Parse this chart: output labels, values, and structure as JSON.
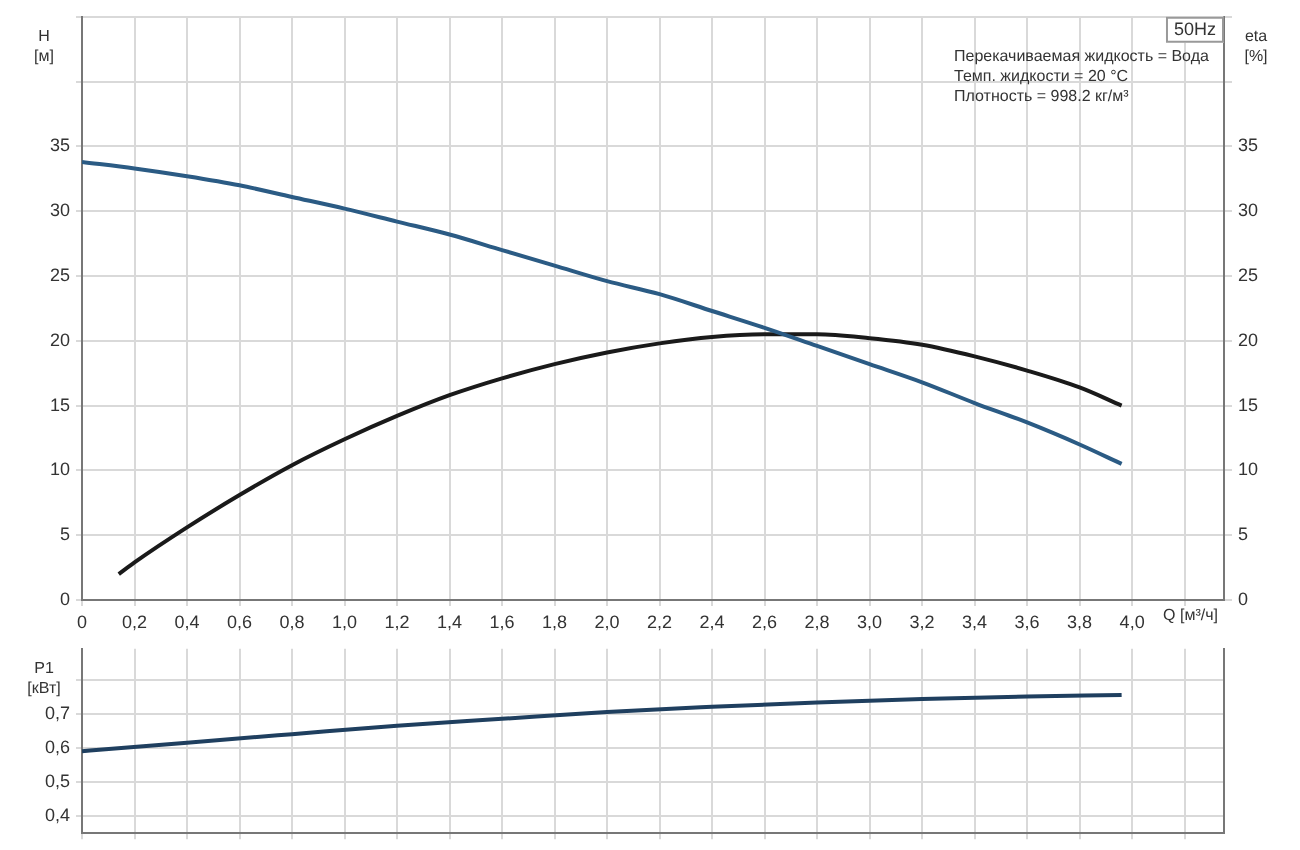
{
  "chart_data": [
    {
      "type": "line",
      "ylabel": "H\n[м]",
      "y2label": "eta\n[%]",
      "xlabel": "Q [м³/ч]",
      "annotations": [
        "50Hz",
        "Перекачиваемая жидкость = Вода",
        "Темп. жидкости = 20 °C",
        "Плотность = 998.2 кг/м³"
      ],
      "xlim": [
        0,
        4.35
      ],
      "xticks": [
        0,
        {
          "value": 0.2,
          "label": "0,2"
        },
        {
          "value": 0.4,
          "label": "0,4"
        },
        {
          "value": 0.6,
          "label": "0,6"
        },
        {
          "value": 0.8,
          "label": "0,8"
        },
        {
          "value": 1,
          "label": "1,0"
        },
        {
          "value": 1.2,
          "label": "1,2"
        },
        {
          "value": 1.4,
          "label": "1,4"
        },
        {
          "value": 1.6,
          "label": "1,6"
        },
        {
          "value": 1.8,
          "label": "1,8"
        },
        {
          "value": 2,
          "label": "2,0"
        },
        {
          "value": 2.2,
          "label": "2,2"
        },
        {
          "value": 2.4,
          "label": "2,4"
        },
        {
          "value": 2.6,
          "label": "2,6"
        },
        {
          "value": 2.8,
          "label": "2,8"
        },
        {
          "value": 3,
          "label": "3,0"
        },
        {
          "value": 3.2,
          "label": "3,2"
        },
        {
          "value": 3.4,
          "label": "3,4"
        },
        {
          "value": 3.6,
          "label": "3,6"
        },
        {
          "value": 3.8,
          "label": "3,8"
        },
        {
          "value": 4,
          "label": "4,0"
        },
        {
          "value": 4.2,
          "label": null
        }
      ],
      "ylim": [
        0,
        45
      ],
      "yticks": [
        0,
        5,
        10,
        15,
        20,
        25,
        30,
        35,
        {
          "value": 40,
          "label": null
        },
        {
          "value": 45,
          "label": null
        }
      ],
      "y2lim": [
        0,
        45
      ],
      "y2ticks": [
        0,
        5,
        10,
        15,
        20,
        25,
        30,
        35,
        {
          "value": 40,
          "label": null
        },
        {
          "value": 45,
          "label": null
        }
      ],
      "grid": true,
      "legend": false,
      "marker": "none",
      "line_style": "solid",
      "series": [
        {
          "color": "#2b5b84",
          "x": [
            0,
            0.2,
            0.4,
            0.6,
            0.8,
            1,
            1.2,
            1.4,
            1.6,
            1.8,
            2,
            2.2,
            2.4,
            2.6,
            2.8,
            3,
            3.2,
            3.4,
            3.6,
            3.8,
            3.96
          ],
          "values": [
            33.8,
            33.3,
            32.7,
            32.0,
            31.1,
            30.2,
            29.2,
            28.2,
            27.0,
            25.8,
            24.6,
            23.6,
            22.3,
            21.0,
            19.6,
            18.2,
            16.8,
            15.2,
            13.7,
            12.0,
            10.5
          ]
        },
        {
          "color": "#1a1a1a",
          "axis": "y2",
          "x": [
            0.14,
            0.2,
            0.4,
            0.6,
            0.8,
            1,
            1.2,
            1.4,
            1.6,
            1.8,
            2,
            2.2,
            2.4,
            2.6,
            2.8,
            3,
            3.2,
            3.4,
            3.6,
            3.8,
            3.96
          ],
          "values": [
            2.0,
            2.9,
            5.6,
            8.1,
            10.4,
            12.4,
            14.2,
            15.8,
            17.1,
            18.2,
            19.1,
            19.8,
            20.3,
            20.5,
            20.5,
            20.2,
            19.7,
            18.8,
            17.7,
            16.4,
            15.0
          ]
        }
      ]
    },
    {
      "type": "line",
      "ylabel": "P1\n[кВт]",
      "tick_labels": "y",
      "xlim": [
        0,
        4.35
      ],
      "xticks": [
        0,
        0.2,
        0.4,
        0.6,
        0.8,
        1,
        1.2,
        1.4,
        1.6,
        1.8,
        2,
        2.2,
        2.4,
        2.6,
        2.8,
        3,
        3.2,
        3.4,
        3.6,
        3.8,
        4,
        4.2
      ],
      "ylim": [
        0.35,
        0.89
      ],
      "yticks": [
        {
          "value": 0.4,
          "label": "0,4"
        },
        {
          "value": 0.5,
          "label": "0,5"
        },
        {
          "value": 0.6,
          "label": "0,6"
        },
        {
          "value": 0.7,
          "label": "0,7"
        },
        {
          "value": 0.8,
          "label": null
        }
      ],
      "grid": true,
      "legend": false,
      "marker": "none",
      "line_style": "solid",
      "series": [
        {
          "color": "#1f3f5f",
          "x": [
            0,
            0.4,
            0.8,
            1.2,
            1.6,
            2,
            2.4,
            2.8,
            3.2,
            3.6,
            3.96
          ],
          "values": [
            0.59,
            0.615,
            0.64,
            0.665,
            0.685,
            0.705,
            0.72,
            0.733,
            0.743,
            0.75,
            0.755
          ]
        }
      ]
    }
  ]
}
